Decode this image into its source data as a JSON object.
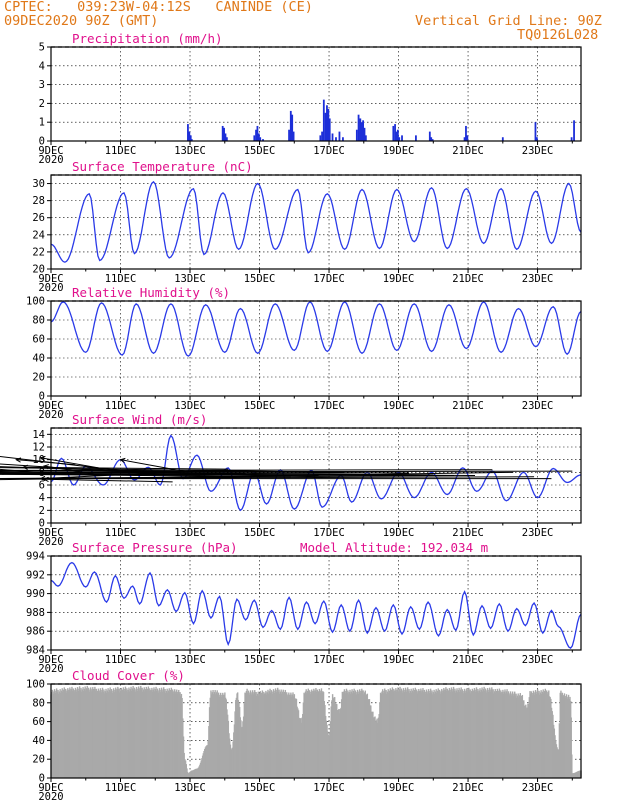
{
  "header": {
    "station": "CPTEC:   039:23W-04:12S   CANINDE (CE)",
    "init": "09DEC2020 90Z (GMT)",
    "grid_note": "Vertical Grid Line: 90Z",
    "code": "TQ0126L028"
  },
  "x_axis": {
    "ticks": [
      "9DEC",
      "11DEC",
      "13DEC",
      "15DEC",
      "17DEC",
      "19DEC",
      "21DEC",
      "23DEC"
    ],
    "tick_days": [
      9,
      11,
      13,
      15,
      17,
      19,
      21,
      23
    ],
    "sublabel": "2020",
    "range_days": [
      9,
      24.25
    ]
  },
  "colors": {
    "line": "#2a3ae8",
    "bar": "#1c2ed8",
    "cloud": "#a9a9a9",
    "title": "#e0108c",
    "header": "#e07818",
    "arrow": "#000000"
  },
  "chart_data": [
    {
      "type": "bar",
      "key": "precip",
      "title": "Precipitation (mm/h)",
      "ylim": [
        0,
        5
      ],
      "yticks": [
        0,
        1,
        2,
        3,
        4,
        5
      ],
      "x": [
        12.94,
        12.98,
        13.02,
        13.05,
        13.94,
        13.98,
        14.02,
        14.06,
        14.85,
        14.9,
        14.94,
        14.98,
        15.02,
        15.1,
        15.85,
        15.9,
        15.94,
        15.98,
        16.75,
        16.8,
        16.85,
        16.9,
        16.94,
        16.98,
        17.02,
        17.1,
        17.2,
        17.3,
        17.4,
        17.8,
        17.85,
        17.9,
        17.94,
        17.98,
        18.02,
        18.06,
        18.85,
        18.9,
        18.94,
        18.98,
        19.02,
        19.1,
        19.5,
        19.9,
        19.94,
        19.98,
        20.9,
        20.94,
        20.98,
        22.0,
        22.94,
        22.98,
        23.98,
        24.05
      ],
      "values": [
        0.9,
        0.5,
        0.3,
        0.1,
        0.8,
        0.7,
        0.4,
        0.2,
        0.3,
        0.6,
        0.8,
        0.4,
        0.2,
        0.1,
        0.6,
        1.6,
        1.4,
        0.5,
        0.3,
        0.5,
        2.2,
        1.5,
        1.9,
        1.7,
        1.2,
        0.4,
        0.2,
        0.5,
        0.2,
        0.6,
        1.4,
        1.2,
        1.0,
        1.1,
        0.7,
        0.3,
        0.8,
        0.9,
        0.5,
        0.6,
        0.2,
        0.3,
        0.3,
        0.5,
        0.2,
        0.1,
        0.2,
        0.8,
        0.3,
        0.2,
        1.0,
        0.2,
        0.2,
        1.1
      ]
    },
    {
      "type": "line",
      "key": "temp",
      "title": "Surface Temperature (nC)",
      "ylim": [
        20,
        31
      ],
      "yticks": [
        20,
        22,
        24,
        26,
        28,
        30
      ],
      "daily": [
        [
          9,
          22.9
        ],
        [
          9.4,
          20.8
        ],
        [
          10.1,
          28.8
        ],
        [
          10.4,
          21.0
        ],
        [
          11.1,
          28.9
        ],
        [
          11.4,
          21.8
        ],
        [
          11.95,
          30.2
        ],
        [
          12.4,
          21.3
        ],
        [
          13.1,
          29.4
        ],
        [
          13.4,
          21.7
        ],
        [
          13.95,
          28.9
        ],
        [
          14.4,
          22.3
        ],
        [
          14.95,
          30.0
        ],
        [
          15.45,
          22.3
        ],
        [
          16.1,
          29.3
        ],
        [
          16.4,
          21.9
        ],
        [
          16.95,
          28.8
        ],
        [
          17.45,
          22.3
        ],
        [
          17.95,
          29.3
        ],
        [
          18.45,
          22.4
        ],
        [
          18.95,
          29.3
        ],
        [
          19.45,
          23.2
        ],
        [
          19.95,
          29.5
        ],
        [
          20.4,
          22.4
        ],
        [
          20.95,
          29.4
        ],
        [
          21.45,
          23.0
        ],
        [
          21.95,
          29.4
        ],
        [
          22.4,
          22.3
        ],
        [
          22.95,
          29.1
        ],
        [
          23.4,
          23.0
        ],
        [
          23.9,
          30.0
        ],
        [
          24.25,
          24.3
        ]
      ]
    },
    {
      "type": "line",
      "key": "rh",
      "title": "Relative Humidity (%)",
      "ylim": [
        0,
        100
      ],
      "yticks": [
        0,
        20,
        40,
        60,
        80,
        100
      ],
      "daily": [
        [
          9,
          78
        ],
        [
          9.35,
          99
        ],
        [
          10.0,
          46
        ],
        [
          10.45,
          98
        ],
        [
          11.05,
          43
        ],
        [
          11.45,
          97
        ],
        [
          11.95,
          45
        ],
        [
          12.45,
          97
        ],
        [
          12.95,
          42
        ],
        [
          13.45,
          96
        ],
        [
          14.0,
          46
        ],
        [
          14.45,
          92
        ],
        [
          14.95,
          45
        ],
        [
          15.45,
          97
        ],
        [
          16.0,
          48
        ],
        [
          16.45,
          99
        ],
        [
          16.95,
          47
        ],
        [
          17.45,
          99
        ],
        [
          17.95,
          45
        ],
        [
          18.45,
          97
        ],
        [
          18.95,
          48
        ],
        [
          19.45,
          97
        ],
        [
          19.95,
          47
        ],
        [
          20.45,
          96
        ],
        [
          20.95,
          50
        ],
        [
          21.45,
          99
        ],
        [
          21.95,
          46
        ],
        [
          22.45,
          92
        ],
        [
          22.95,
          52
        ],
        [
          23.45,
          94
        ],
        [
          23.85,
          44
        ],
        [
          24.25,
          89
        ]
      ]
    },
    {
      "type": "line",
      "key": "wind",
      "title": "Surface Wind (m/s)",
      "ylim": [
        0,
        15
      ],
      "yticks": [
        0,
        2,
        4,
        6,
        8,
        10,
        12,
        14
      ],
      "daily": [
        [
          9,
          6.5
        ],
        [
          9.3,
          10.2
        ],
        [
          9.65,
          6.0
        ],
        [
          10.0,
          9.0
        ],
        [
          10.5,
          6.0
        ],
        [
          11.0,
          10.0
        ],
        [
          11.4,
          6.8
        ],
        [
          11.8,
          8.8
        ],
        [
          12.15,
          6.0
        ],
        [
          12.45,
          13.8
        ],
        [
          12.8,
          7.0
        ],
        [
          13.2,
          10.7
        ],
        [
          13.6,
          5.0
        ],
        [
          14.1,
          8.7
        ],
        [
          14.45,
          2.0
        ],
        [
          14.85,
          8.0
        ],
        [
          15.2,
          3.0
        ],
        [
          15.6,
          8.4
        ],
        [
          16.0,
          2.2
        ],
        [
          16.5,
          8.3
        ],
        [
          16.8,
          2.5
        ],
        [
          17.35,
          7.5
        ],
        [
          17.65,
          3.3
        ],
        [
          18.1,
          8.0
        ],
        [
          18.5,
          3.8
        ],
        [
          19.0,
          8.0
        ],
        [
          19.45,
          4.0
        ],
        [
          19.95,
          8.0
        ],
        [
          20.4,
          4.5
        ],
        [
          20.85,
          8.7
        ],
        [
          21.25,
          5.0
        ],
        [
          21.7,
          8.2
        ],
        [
          22.1,
          3.5
        ],
        [
          22.6,
          8.0
        ],
        [
          23.0,
          4.0
        ],
        [
          23.45,
          8.6
        ],
        [
          23.85,
          6.4
        ],
        [
          24.25,
          7.6
        ]
      ],
      "vectors": [
        [
          9.1,
          7.8,
          7.0,
          8.7
        ],
        [
          9.7,
          9.2,
          8.0,
          10.0
        ],
        [
          10.2,
          7.8,
          8.8,
          9.0
        ],
        [
          10.8,
          8.3,
          8.7,
          10.3
        ],
        [
          11.3,
          8.1,
          5.5,
          11.8
        ],
        [
          11.9,
          7.8,
          7.0,
          9.5
        ],
        [
          12.5,
          6.5,
          8.8,
          6.9
        ],
        [
          12.9,
          8.1,
          11.0,
          10.0
        ],
        [
          13.5,
          8.3,
          8.7,
          7.0
        ],
        [
          14.1,
          8.5,
          8.2,
          8.8
        ],
        [
          14.6,
          7.8,
          7.0,
          7.8
        ],
        [
          15.2,
          7.5,
          7.0,
          9.0
        ],
        [
          15.9,
          7.3,
          7.3,
          7.7
        ],
        [
          16.7,
          7.5,
          6.0,
          7.9
        ],
        [
          17.4,
          8.0,
          6.8,
          8.8
        ],
        [
          18.0,
          8.1,
          6.5,
          8.3
        ],
        [
          18.6,
          7.5,
          7.0,
          7.7
        ],
        [
          19.3,
          7.9,
          6.2,
          8.0
        ],
        [
          20.0,
          7.6,
          6.0,
          8.2
        ],
        [
          20.6,
          7.5,
          6.8,
          7.0
        ],
        [
          21.2,
          7.5,
          6.0,
          7.9
        ],
        [
          21.7,
          8.4,
          6.7,
          8.3
        ],
        [
          22.3,
          8.0,
          7.0,
          6.8
        ],
        [
          22.9,
          7.3,
          7.2,
          7.0
        ],
        [
          23.4,
          7.0,
          7.0,
          7.0
        ],
        [
          24.0,
          8.2,
          7.5,
          8.0
        ]
      ]
    },
    {
      "type": "line",
      "key": "pres",
      "title": "Surface Pressure (hPa)",
      "annotation": "Model Altitude: 192.034 m",
      "ylim": [
        984,
        994
      ],
      "yticks": [
        984,
        986,
        988,
        990,
        992,
        994
      ],
      "daily": [
        [
          9,
          991.4
        ],
        [
          9.2,
          990.8
        ],
        [
          9.6,
          993.3
        ],
        [
          10.0,
          990.7
        ],
        [
          10.25,
          992.3
        ],
        [
          10.6,
          989.1
        ],
        [
          10.85,
          991.9
        ],
        [
          11.1,
          989.5
        ],
        [
          11.35,
          990.8
        ],
        [
          11.55,
          988.9
        ],
        [
          11.85,
          992.2
        ],
        [
          12.1,
          988.7
        ],
        [
          12.35,
          990.4
        ],
        [
          12.6,
          988.1
        ],
        [
          12.85,
          990.1
        ],
        [
          13.1,
          986.8
        ],
        [
          13.35,
          990.3
        ],
        [
          13.6,
          987.4
        ],
        [
          13.85,
          989.7
        ],
        [
          14.1,
          984.6
        ],
        [
          14.35,
          989.4
        ],
        [
          14.6,
          987.2
        ],
        [
          14.85,
          989.3
        ],
        [
          15.1,
          986.4
        ],
        [
          15.35,
          988.2
        ],
        [
          15.6,
          986.2
        ],
        [
          15.85,
          989.6
        ],
        [
          16.1,
          986.2
        ],
        [
          16.35,
          989.1
        ],
        [
          16.6,
          986.8
        ],
        [
          16.85,
          989.2
        ],
        [
          17.1,
          985.9
        ],
        [
          17.35,
          988.8
        ],
        [
          17.6,
          986.0
        ],
        [
          17.85,
          989.3
        ],
        [
          18.1,
          985.8
        ],
        [
          18.35,
          988.5
        ],
        [
          18.6,
          986.0
        ],
        [
          18.85,
          988.8
        ],
        [
          19.1,
          985.7
        ],
        [
          19.35,
          988.6
        ],
        [
          19.6,
          986.2
        ],
        [
          19.85,
          989.1
        ],
        [
          20.15,
          985.5
        ],
        [
          20.4,
          988.3
        ],
        [
          20.65,
          986.1
        ],
        [
          20.9,
          990.2
        ],
        [
          21.15,
          985.6
        ],
        [
          21.4,
          988.7
        ],
        [
          21.65,
          986.3
        ],
        [
          21.9,
          988.9
        ],
        [
          22.15,
          986.0
        ],
        [
          22.4,
          988.4
        ],
        [
          22.65,
          986.6
        ],
        [
          22.9,
          989.0
        ],
        [
          23.15,
          985.8
        ],
        [
          23.4,
          988.2
        ],
        [
          23.6,
          986.5
        ],
        [
          23.95,
          984.2
        ],
        [
          24.25,
          987.8
        ]
      ]
    },
    {
      "type": "area",
      "key": "cloud",
      "title": "Cloud Cover (%)",
      "ylim": [
        0,
        100
      ],
      "yticks": [
        0,
        20,
        40,
        60,
        80,
        100
      ],
      "daily": [
        [
          9,
          92
        ],
        [
          9.6,
          94
        ],
        [
          10.0,
          95
        ],
        [
          10.5,
          93
        ],
        [
          11.0,
          94
        ],
        [
          11.5,
          95
        ],
        [
          12.0,
          94
        ],
        [
          12.5,
          93
        ],
        [
          12.75,
          90
        ],
        [
          12.85,
          20
        ],
        [
          12.95,
          5
        ],
        [
          13.05,
          8
        ],
        [
          13.2,
          10
        ],
        [
          13.5,
          35
        ],
        [
          13.6,
          92
        ],
        [
          14.0,
          88
        ],
        [
          14.2,
          30
        ],
        [
          14.35,
          90
        ],
        [
          14.5,
          55
        ],
        [
          14.6,
          92
        ],
        [
          15.0,
          90
        ],
        [
          15.5,
          93
        ],
        [
          16.0,
          88
        ],
        [
          16.2,
          60
        ],
        [
          16.3,
          92
        ],
        [
          16.8,
          93
        ],
        [
          17.0,
          45
        ],
        [
          17.1,
          88
        ],
        [
          17.3,
          70
        ],
        [
          17.4,
          92
        ],
        [
          18.0,
          92
        ],
        [
          18.4,
          60
        ],
        [
          18.5,
          92
        ],
        [
          19.0,
          94
        ],
        [
          19.5,
          93
        ],
        [
          20.0,
          92
        ],
        [
          20.5,
          94
        ],
        [
          21.0,
          93
        ],
        [
          21.5,
          94
        ],
        [
          22.0,
          92
        ],
        [
          22.5,
          88
        ],
        [
          22.7,
          75
        ],
        [
          22.8,
          91
        ],
        [
          23.3,
          92
        ],
        [
          23.6,
          30
        ],
        [
          23.65,
          90
        ],
        [
          23.95,
          85
        ],
        [
          24.0,
          5
        ],
        [
          24.25,
          8
        ]
      ]
    }
  ]
}
